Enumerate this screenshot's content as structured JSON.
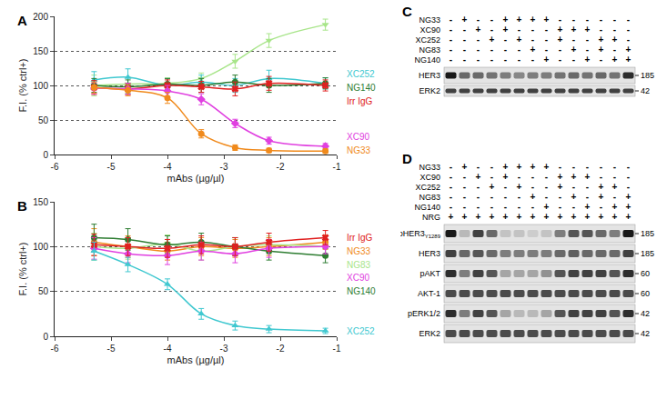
{
  "chart_data": [
    {
      "panel": "A",
      "type": "line",
      "x_label": "mAbs (µg/µl)",
      "y_label": "F.I. (% ctrl+)",
      "x": [
        -5.3,
        -4.7,
        -4.0,
        -3.4,
        -2.8,
        -2.2,
        -1.2
      ],
      "xlim": [
        -6,
        -1
      ],
      "xticks": [
        -6,
        -5,
        -4,
        -3,
        -2,
        -1
      ],
      "ylim": [
        0,
        200
      ],
      "yticks": [
        0,
        50,
        100,
        150,
        200
      ],
      "grid": true,
      "series": [
        {
          "name": "NG83",
          "color": "#a8e58a",
          "marker": "triangle-down",
          "values": [
            100,
            102,
            103,
            110,
            135,
            165,
            188
          ],
          "errors": [
            15,
            10,
            8,
            8,
            10,
            10,
            8
          ]
        },
        {
          "name": "XC252",
          "color": "#40c8d0",
          "marker": "triangle-up",
          "values": [
            108,
            112,
            100,
            105,
            100,
            110,
            103
          ],
          "errors": [
            12,
            12,
            10,
            10,
            10,
            12,
            8
          ]
        },
        {
          "name": "NG140",
          "color": "#2e7d32",
          "marker": "circle",
          "values": [
            100,
            98,
            102,
            100,
            105,
            100,
            103
          ],
          "errors": [
            10,
            10,
            8,
            10,
            10,
            10,
            8
          ]
        },
        {
          "name": "Irr IgG",
          "color": "#e02020",
          "marker": "x",
          "values": [
            97,
            95,
            100,
            98,
            95,
            103,
            100
          ],
          "errors": [
            10,
            8,
            8,
            8,
            10,
            10,
            8
          ]
        },
        {
          "name": "XC90",
          "color": "#e040e0",
          "marker": "diamond",
          "values": [
            96,
            95,
            92,
            80,
            45,
            20,
            12
          ],
          "errors": [
            8,
            8,
            8,
            8,
            6,
            5,
            4
          ]
        },
        {
          "name": "NG33",
          "color": "#f08a1c",
          "marker": "circle",
          "values": [
            97,
            93,
            82,
            30,
            10,
            6,
            5
          ],
          "errors": [
            8,
            8,
            8,
            6,
            4,
            3,
            3
          ]
        }
      ]
    },
    {
      "panel": "B",
      "type": "line",
      "x_label": "mAbs (µg/µl)",
      "y_label": "F.I. (% ctrl+)",
      "x": [
        -5.3,
        -4.7,
        -4.0,
        -3.4,
        -2.8,
        -2.2,
        -1.2
      ],
      "xlim": [
        -6,
        -1
      ],
      "xticks": [
        -6,
        -5,
        -4,
        -3,
        -2,
        -1
      ],
      "ylim": [
        0,
        150
      ],
      "yticks": [
        0,
        50,
        100,
        150
      ],
      "grid": true,
      "series": [
        {
          "name": "NG33",
          "color": "#f08a1c",
          "marker": "circle",
          "values": [
            105,
            100,
            95,
            100,
            98,
            100,
            105
          ],
          "errors": [
            15,
            12,
            10,
            10,
            10,
            10,
            8
          ]
        },
        {
          "name": "NG83",
          "color": "#a8e58a",
          "marker": "triangle-down",
          "values": [
            100,
            98,
            103,
            95,
            100,
            102,
            100
          ],
          "errors": [
            15,
            12,
            10,
            10,
            10,
            10,
            8
          ]
        },
        {
          "name": "NG140",
          "color": "#2e7d32",
          "marker": "circle",
          "values": [
            110,
            108,
            102,
            105,
            100,
            95,
            90
          ],
          "errors": [
            15,
            12,
            10,
            10,
            10,
            10,
            8
          ]
        },
        {
          "name": "XC90",
          "color": "#e040e0",
          "marker": "diamond",
          "values": [
            98,
            92,
            90,
            95,
            92,
            98,
            100
          ],
          "errors": [
            12,
            10,
            10,
            10,
            10,
            10,
            8
          ]
        },
        {
          "name": "Irr IgG",
          "color": "#e02020",
          "marker": "x",
          "values": [
            102,
            100,
            98,
            102,
            100,
            105,
            110
          ],
          "errors": [
            12,
            10,
            10,
            10,
            10,
            10,
            8
          ]
        },
        {
          "name": "XC252",
          "color": "#40c8d0",
          "marker": "triangle-up",
          "values": [
            95,
            80,
            58,
            25,
            12,
            8,
            6
          ],
          "errors": [
            10,
            8,
            6,
            6,
            5,
            4,
            3
          ]
        }
      ]
    }
  ],
  "blots": [
    {
      "panel": "C",
      "treatments": [
        {
          "name": "NG33",
          "signs": [
            "-",
            "+",
            "-",
            "-",
            "+",
            "+",
            "+",
            "+",
            "-",
            "-",
            "-",
            "-",
            "-",
            "-"
          ]
        },
        {
          "name": "XC90",
          "signs": [
            "-",
            "-",
            "+",
            "-",
            "+",
            "-",
            "-",
            "-",
            "+",
            "+",
            "+",
            "-",
            "-",
            "-"
          ]
        },
        {
          "name": "XC252",
          "signs": [
            "-",
            "-",
            "-",
            "+",
            "-",
            "+",
            "-",
            "-",
            "+",
            "-",
            "-",
            "+",
            "+",
            "-"
          ]
        },
        {
          "name": "NG83",
          "signs": [
            "-",
            "-",
            "-",
            "-",
            "-",
            "-",
            "+",
            "-",
            "-",
            "+",
            "-",
            "+",
            "-",
            "+"
          ]
        },
        {
          "name": "NG140",
          "signs": [
            "-",
            "-",
            "-",
            "-",
            "-",
            "-",
            "-",
            "+",
            "-",
            "-",
            "+",
            "-",
            "+",
            "+"
          ]
        }
      ],
      "bands": [
        {
          "label": "HER3",
          "mw": 185,
          "intensity": [
            1,
            0.6,
            0.6,
            0.55,
            0.5,
            0.45,
            0.5,
            0.5,
            0.55,
            0.6,
            0.55,
            0.6,
            0.55,
            0.9
          ]
        },
        {
          "label": "ERK2",
          "mw": 42,
          "intensity": [
            0.8,
            0.8,
            0.8,
            0.8,
            0.8,
            0.8,
            0.8,
            0.8,
            0.8,
            0.8,
            0.8,
            0.8,
            0.8,
            0.8
          ]
        }
      ]
    },
    {
      "panel": "D",
      "treatments": [
        {
          "name": "NG33",
          "signs": [
            "-",
            "+",
            "-",
            "-",
            "+",
            "+",
            "+",
            "+",
            "-",
            "-",
            "-",
            "-",
            "-",
            "-"
          ]
        },
        {
          "name": "XC90",
          "signs": [
            "-",
            "-",
            "+",
            "-",
            "+",
            "-",
            "-",
            "-",
            "+",
            "+",
            "+",
            "-",
            "-",
            "-"
          ]
        },
        {
          "name": "XC252",
          "signs": [
            "-",
            "-",
            "-",
            "+",
            "-",
            "+",
            "-",
            "-",
            "+",
            "-",
            "-",
            "+",
            "+",
            "-"
          ]
        },
        {
          "name": "NG83",
          "signs": [
            "-",
            "-",
            "-",
            "-",
            "-",
            "-",
            "+",
            "-",
            "-",
            "+",
            "-",
            "+",
            "-",
            "+"
          ]
        },
        {
          "name": "NG140",
          "signs": [
            "-",
            "-",
            "-",
            "-",
            "-",
            "-",
            "-",
            "+",
            "-",
            "-",
            "+",
            "-",
            "+",
            "+"
          ]
        },
        {
          "name": "NRG",
          "signs": [
            "+",
            "+",
            "+",
            "+",
            "+",
            "+",
            "+",
            "+",
            "+",
            "+",
            "+",
            "+",
            "+",
            "+"
          ]
        }
      ],
      "bands": [
        {
          "label": "pHER3",
          "sub": "Y1289",
          "mw": 185,
          "intensity": [
            1,
            0.2,
            0.8,
            0.6,
            0.15,
            0.15,
            0.1,
            0.15,
            0.5,
            0.7,
            0.7,
            0.6,
            0.5,
            1
          ]
        },
        {
          "label": "HER3",
          "mw": 185,
          "intensity": [
            0.8,
            0.6,
            0.7,
            0.6,
            0.5,
            0.5,
            0.5,
            0.5,
            0.6,
            0.65,
            0.6,
            0.6,
            0.6,
            0.8
          ]
        },
        {
          "label": "pAKT",
          "mw": 60,
          "intensity": [
            0.9,
            0.5,
            0.8,
            0.7,
            0.3,
            0.3,
            0.3,
            0.4,
            0.7,
            0.8,
            0.8,
            0.8,
            0.7,
            0.9
          ]
        },
        {
          "label": "AKT-1",
          "mw": 60,
          "intensity": [
            0.75,
            0.75,
            0.75,
            0.75,
            0.75,
            0.75,
            0.75,
            0.75,
            0.75,
            0.75,
            0.75,
            0.75,
            0.75,
            0.75
          ]
        },
        {
          "label": "pERK1/2",
          "mw": 42,
          "intensity": [
            0.9,
            0.5,
            0.8,
            0.7,
            0.3,
            0.2,
            0.2,
            0.3,
            0.7,
            0.8,
            0.8,
            0.8,
            0.7,
            0.9
          ]
        },
        {
          "label": "ERK2",
          "mw": 42,
          "intensity": [
            0.75,
            0.75,
            0.75,
            0.75,
            0.75,
            0.75,
            0.75,
            0.75,
            0.75,
            0.75,
            0.75,
            0.75,
            0.75,
            0.75
          ]
        }
      ]
    }
  ]
}
